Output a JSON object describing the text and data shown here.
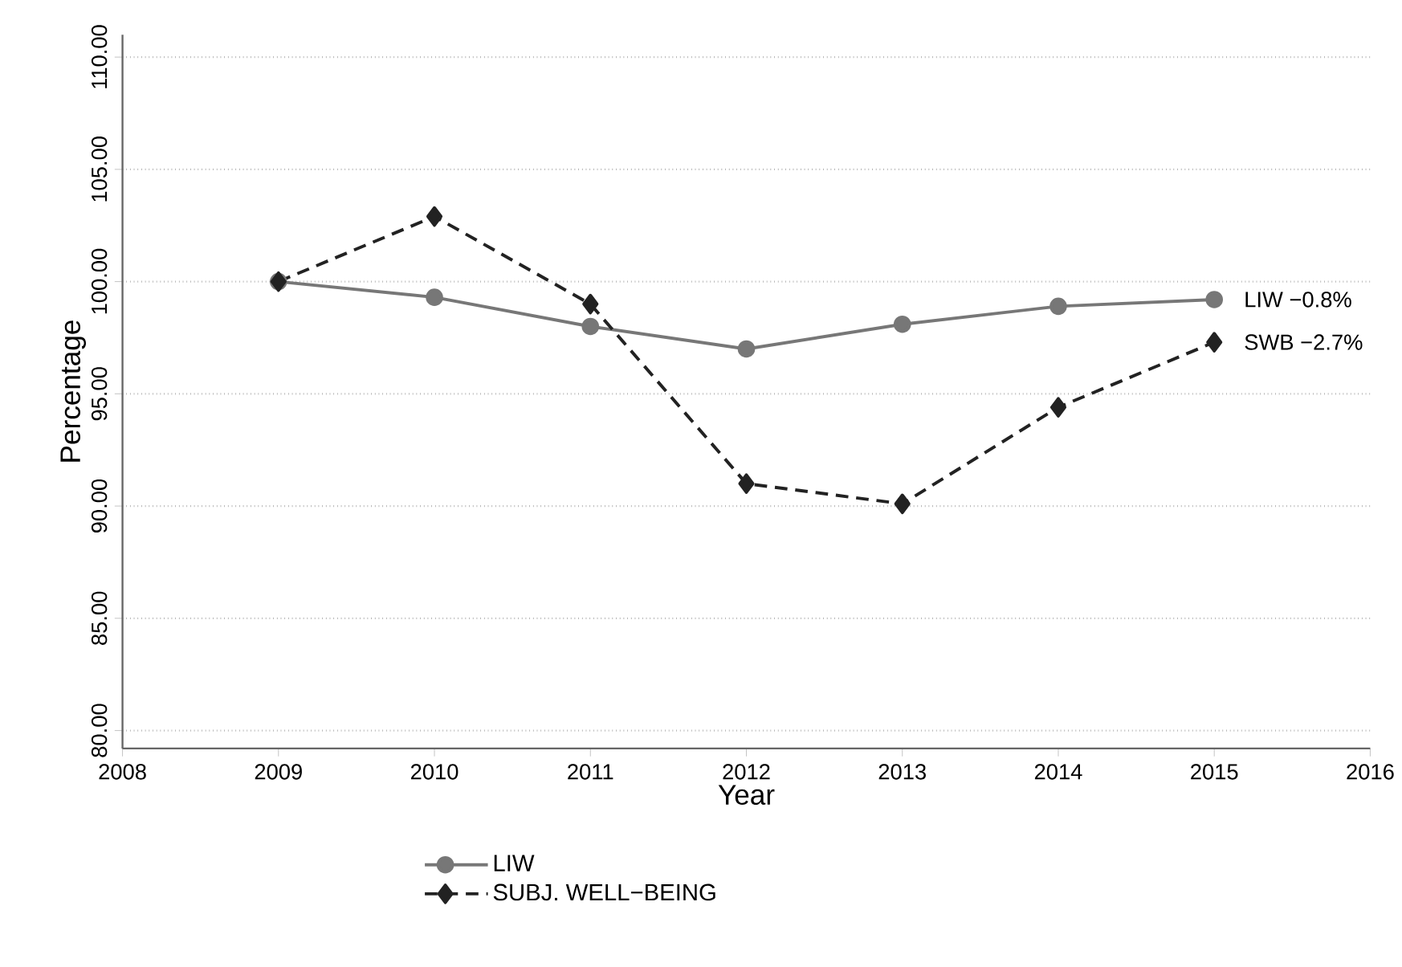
{
  "chart_data": {
    "type": "line",
    "xlabel": "Year",
    "ylabel": "Percentage",
    "x": [
      2009,
      2010,
      2011,
      2012,
      2013,
      2014,
      2015
    ],
    "series": [
      {
        "name": "LIW",
        "color": "#777777",
        "marker": "circle",
        "line_style": "solid",
        "values": [
          100,
          99.3,
          98.0,
          97.0,
          98.1,
          98.9,
          99.2
        ]
      },
      {
        "name": "SUBJ. WELL−BEING",
        "color": "#222222",
        "marker": "diamond",
        "line_style": "dashed",
        "values": [
          100,
          102.9,
          99.0,
          91.0,
          90.1,
          94.4,
          97.3
        ]
      }
    ],
    "xlim": [
      2008,
      2016
    ],
    "xticks": [
      2008,
      2009,
      2010,
      2011,
      2012,
      2013,
      2014,
      2015,
      2016
    ],
    "ylim": [
      79.2,
      111
    ],
    "yticks": [
      {
        "value": 80,
        "label": "80.00"
      },
      {
        "value": 85,
        "label": "85.00"
      },
      {
        "value": 90,
        "label": "90.00"
      },
      {
        "value": 95,
        "label": "95.00"
      },
      {
        "value": 100,
        "label": "100.00"
      },
      {
        "value": 105,
        "label": "105.00"
      },
      {
        "value": 110,
        "label": "110.00"
      }
    ],
    "grid": "y",
    "legend": "bottom",
    "annotations": [
      {
        "text": "LIW −0.8%",
        "x": 2015,
        "y": 99.2
      },
      {
        "text": "SWB −2.7%",
        "x": 2015,
        "y": 97.3
      }
    ]
  }
}
